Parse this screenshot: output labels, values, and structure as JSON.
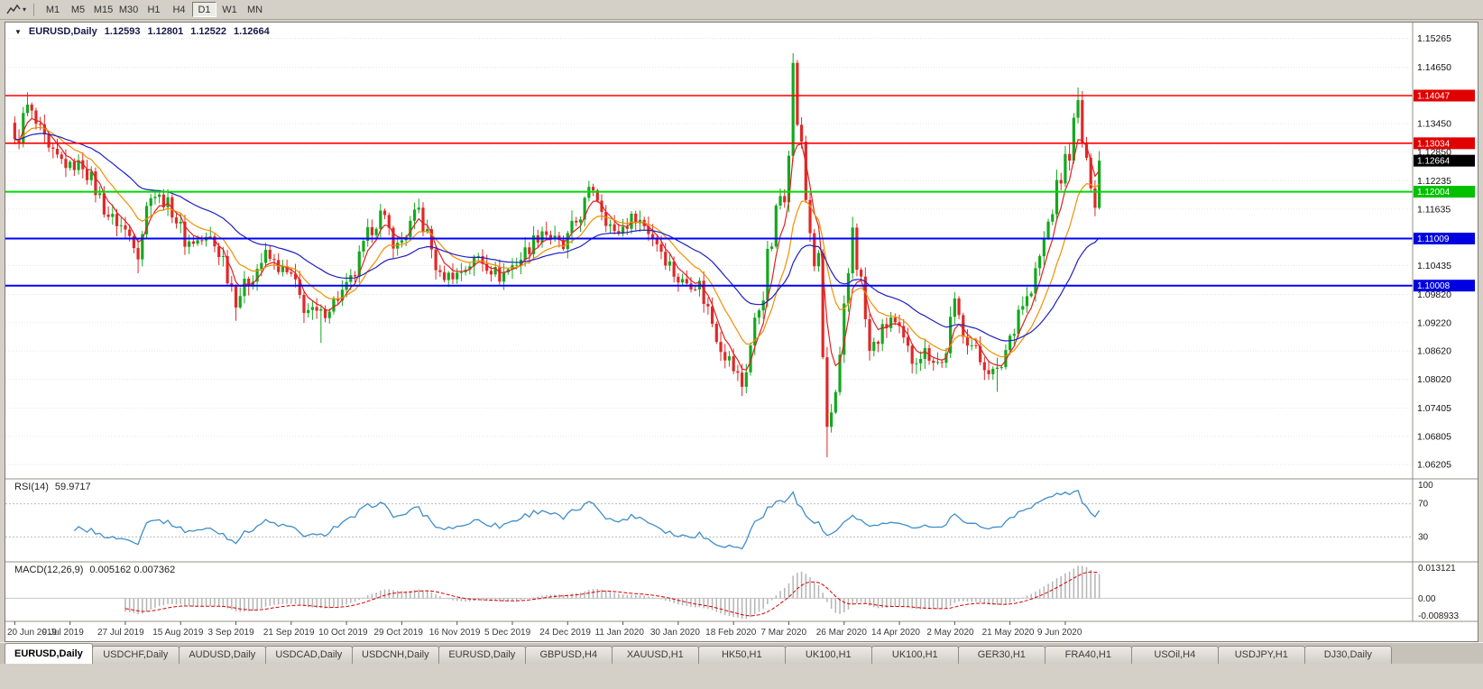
{
  "toolbar": {
    "timeframes": [
      "M1",
      "M5",
      "M15",
      "M30",
      "H1",
      "H4",
      "D1",
      "W1",
      "MN"
    ],
    "active_timeframe": "D1"
  },
  "chart_header": {
    "collapse_icon": "▼",
    "symbol": "EURUSD,Daily",
    "open": "1.12593",
    "high": "1.12801",
    "low": "1.12522",
    "close": "1.12664"
  },
  "chart_data": [
    {
      "type": "candlestick",
      "title": "EURUSD,Daily",
      "y_range": [
        1.059,
        1.156
      ],
      "n_candles": 256,
      "candle_colors": {
        "bull": "#14a81e",
        "bear": "#e02828"
      },
      "close_anchors": [
        [
          0,
          1.1295
        ],
        [
          3,
          1.138
        ],
        [
          8,
          1.1285
        ],
        [
          13,
          1.1253
        ],
        [
          16,
          1.1262
        ],
        [
          22,
          1.115
        ],
        [
          25,
          1.1128
        ],
        [
          29,
          1.1085
        ],
        [
          32,
          1.12
        ],
        [
          37,
          1.1168
        ],
        [
          40,
          1.1092
        ],
        [
          46,
          1.11
        ],
        [
          49,
          1.1058
        ],
        [
          52,
          1.0972
        ],
        [
          59,
          1.1065
        ],
        [
          62,
          1.104
        ],
        [
          65,
          1.1017
        ],
        [
          68,
          1.0952
        ],
        [
          72,
          1.0938
        ],
        [
          79,
          1.1005
        ],
        [
          84,
          1.1125
        ],
        [
          86,
          1.115
        ],
        [
          90,
          1.1082
        ],
        [
          95,
          1.116
        ],
        [
          100,
          1.102
        ],
        [
          104,
          1.1025
        ],
        [
          109,
          1.1062
        ],
        [
          114,
          1.102
        ],
        [
          119,
          1.106
        ],
        [
          124,
          1.112
        ],
        [
          129,
          1.108
        ],
        [
          136,
          1.1212
        ],
        [
          141,
          1.1108
        ],
        [
          146,
          1.115
        ],
        [
          151,
          1.1095
        ],
        [
          156,
          1.1012
        ],
        [
          161,
          1.1
        ],
        [
          166,
          1.0875
        ],
        [
          171,
          1.079
        ],
        [
          176,
          1.1
        ],
        [
          181,
          1.124
        ],
        [
          183,
          1.145
        ],
        [
          186,
          1.1185
        ],
        [
          189,
          1.0995
        ],
        [
          191,
          1.0695
        ],
        [
          194,
          1.079
        ],
        [
          197,
          1.1135
        ],
        [
          201,
          1.0858
        ],
        [
          206,
          1.0932
        ],
        [
          211,
          1.0842
        ],
        [
          214,
          1.086
        ],
        [
          218,
          1.0832
        ],
        [
          221,
          1.0955
        ],
        [
          223,
          1.0908
        ],
        [
          227,
          1.084
        ],
        [
          231,
          1.0808
        ],
        [
          236,
          1.0952
        ],
        [
          239,
          1.0985
        ],
        [
          244,
          1.117
        ],
        [
          248,
          1.1295
        ],
        [
          250,
          1.1375
        ],
        [
          252,
          1.125
        ],
        [
          254,
          1.1205
        ],
        [
          255,
          1.12664
        ]
      ],
      "wick_overrides": [
        [
          3,
          "high",
          1.1412
        ],
        [
          29,
          "low",
          1.1027
        ],
        [
          52,
          "low",
          1.0926
        ],
        [
          72,
          "low",
          1.0879
        ],
        [
          171,
          "low",
          1.0778
        ],
        [
          183,
          "high",
          1.1495
        ],
        [
          191,
          "low",
          1.0636
        ],
        [
          197,
          "high",
          1.1147
        ],
        [
          231,
          "low",
          1.0775
        ],
        [
          250,
          "high",
          1.1422
        ],
        [
          254,
          "low",
          1.1168
        ]
      ],
      "moving_averages": [
        {
          "name": "fast-ma",
          "period": 5,
          "color": "#e02020"
        },
        {
          "name": "medium-ma",
          "period": 13,
          "color": "#f09000"
        },
        {
          "name": "slow-ma",
          "period": 34,
          "color": "#2020c0"
        }
      ],
      "hlines": [
        {
          "price": 1.14047,
          "color": "#ff0000",
          "width": 1.6
        },
        {
          "price": 1.13034,
          "color": "#ff0000",
          "width": 1.6
        },
        {
          "price": 1.12004,
          "color": "#00d800",
          "width": 2
        },
        {
          "price": 1.11009,
          "color": "#0000ff",
          "width": 2
        },
        {
          "price": 1.10008,
          "color": "#0000ff",
          "width": 2
        }
      ],
      "axis_labels": [
        "1.15265",
        "1.14650",
        "1.13450",
        "1.12850",
        "1.12235",
        "1.11635",
        "1.10435",
        "1.09820",
        "1.09220",
        "1.08620",
        "1.08020",
        "1.07405",
        "1.06805",
        "1.06205"
      ],
      "price_badges": [
        {
          "label": "1.14047",
          "price": 1.14047,
          "bg": "#e00000",
          "fg": "#ffffff"
        },
        {
          "label": "1.13034",
          "price": 1.13034,
          "bg": "#e00000",
          "fg": "#ffffff"
        },
        {
          "label": "1.12664",
          "price": 1.12664,
          "bg": "#000000",
          "fg": "#ffffff"
        },
        {
          "label": "1.12004",
          "price": 1.12004,
          "bg": "#00c000",
          "fg": "#ffffff"
        },
        {
          "label": "1.11009",
          "price": 1.11009,
          "bg": "#0000e0",
          "fg": "#ffffff"
        },
        {
          "label": "1.10008",
          "price": 1.10008,
          "bg": "#0000e0",
          "fg": "#ffffff"
        }
      ],
      "x_labels": [
        "20 Jun 2019",
        "9 Jul 2019",
        "27 Jul 2019",
        "15 Aug 2019",
        "3 Sep 2019",
        "21 Sep 2019",
        "10 Oct 2019",
        "29 Oct 2019",
        "16 Nov 2019",
        "5 Dec 2019",
        "24 Dec 2019",
        "11 Jan 2020",
        "30 Jan 2020",
        "18 Feb 2020",
        "7 Mar 2020",
        "26 Mar 2020",
        "14 Apr 2020",
        "2 May 2020",
        "21 May 2020",
        "9 Jun 2020"
      ],
      "x_label_step": 13
    },
    {
      "type": "line",
      "indicator": "RSI",
      "label": "RSI(14)",
      "value": "59.9717",
      "period": 14,
      "range": [
        0,
        100
      ],
      "levels": [
        70,
        30
      ],
      "axis_labels": [
        "100",
        "70",
        "30"
      ],
      "color": "#3e8ec9"
    },
    {
      "type": "macd",
      "indicator": "MACD",
      "label": "MACD(12,26,9)",
      "values": "0.005162 0.007362",
      "fast": 12,
      "slow": 26,
      "signal": 9,
      "axis_labels": [
        "0.013121",
        "0.00",
        "-0.008933"
      ],
      "histogram_color": "#b4b4b4",
      "signal_color": "#d80000"
    }
  ],
  "tabs": {
    "items": [
      {
        "label": "EURUSD,Daily",
        "active": true
      },
      {
        "label": "USDCHF,Daily"
      },
      {
        "label": "AUDUSD,Daily"
      },
      {
        "label": "USDCAD,Daily"
      },
      {
        "label": "USDCNH,Daily"
      },
      {
        "label": "EURUSD,Daily"
      },
      {
        "label": "GBPUSD,H4"
      },
      {
        "label": "XAUUSD,H1"
      },
      {
        "label": "HK50,H1"
      },
      {
        "label": "UK100,H1"
      },
      {
        "label": "UK100,H1"
      },
      {
        "label": "GER30,H1"
      },
      {
        "label": "FRA40,H1"
      },
      {
        "label": "USOil,H4"
      },
      {
        "label": "USDJPY,H1"
      },
      {
        "label": "DJ30,Daily"
      }
    ]
  }
}
